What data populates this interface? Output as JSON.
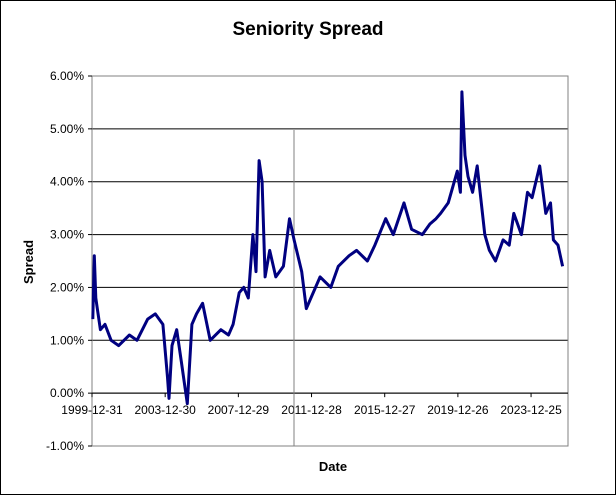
{
  "chart_data": {
    "type": "line",
    "title": "Seniority Spread",
    "xlabel": "Date",
    "ylabel": "Spread",
    "ylim": [
      -0.01,
      0.06
    ],
    "y_ticks": [
      "-1.00%",
      "0.00%",
      "1.00%",
      "2.00%",
      "3.00%",
      "4.00%",
      "5.00%",
      "6.00%"
    ],
    "x_ticks": [
      "1999-12-31",
      "2003-12-30",
      "2007-12-29",
      "2011-12-28",
      "2015-12-27",
      "2019-12-26",
      "2023-12-25"
    ],
    "grid": "horizontal",
    "line_color": "#000080",
    "series": [
      {
        "x": [
          "2000-01",
          "2000-02",
          "2000-03",
          "2000-04",
          "2000-06",
          "2000-09",
          "2001-01",
          "2001-06",
          "2002-01",
          "2002-06",
          "2003-01",
          "2003-06",
          "2003-11",
          "2004-02",
          "2004-03",
          "2004-05",
          "2004-08",
          "2004-11",
          "2005-03",
          "2005-06",
          "2005-09",
          "2006-01",
          "2006-06",
          "2007-01",
          "2007-06",
          "2007-09",
          "2008-01",
          "2008-04",
          "2008-07",
          "2008-10",
          "2008-12",
          "2009-02",
          "2009-04",
          "2009-06",
          "2009-09",
          "2010-01",
          "2010-06",
          "2010-10",
          "2011-01",
          "2011-06",
          "2011-09",
          "2011-12",
          "2012-06",
          "2013-01",
          "2013-06",
          "2014-01",
          "2014-06",
          "2015-01",
          "2015-06",
          "2016-01",
          "2016-06",
          "2017-01",
          "2017-06",
          "2018-01",
          "2018-06",
          "2018-10",
          "2019-01",
          "2019-06",
          "2019-12",
          "2020-02",
          "2020-03",
          "2020-05",
          "2020-07",
          "2020-10",
          "2021-01",
          "2021-06",
          "2021-09",
          "2022-01",
          "2022-06",
          "2022-10",
          "2023-01",
          "2023-06",
          "2023-10",
          "2024-01",
          "2024-06",
          "2024-10",
          "2025-01",
          "2025-03",
          "2025-06",
          "2025-09"
        ],
        "y": [
          0.014,
          0.026,
          0.018,
          0.016,
          0.012,
          0.013,
          0.01,
          0.009,
          0.011,
          0.01,
          0.014,
          0.015,
          0.013,
          0.003,
          -0.001,
          0.009,
          0.012,
          0.006,
          -0.002,
          0.013,
          0.015,
          0.017,
          0.01,
          0.012,
          0.011,
          0.013,
          0.019,
          0.02,
          0.018,
          0.03,
          0.023,
          0.044,
          0.04,
          0.022,
          0.027,
          0.022,
          0.024,
          0.033,
          0.029,
          0.023,
          0.016,
          0.018,
          0.022,
          0.02,
          0.024,
          0.026,
          0.027,
          0.025,
          0.028,
          0.033,
          0.03,
          0.036,
          0.031,
          0.03,
          0.032,
          0.033,
          0.034,
          0.036,
          0.042,
          0.038,
          0.057,
          0.045,
          0.041,
          0.038,
          0.043,
          0.03,
          0.027,
          0.025,
          0.029,
          0.028,
          0.034,
          0.03,
          0.038,
          0.037,
          0.043,
          0.034,
          0.036,
          0.029,
          0.028,
          0.024
        ]
      }
    ]
  }
}
